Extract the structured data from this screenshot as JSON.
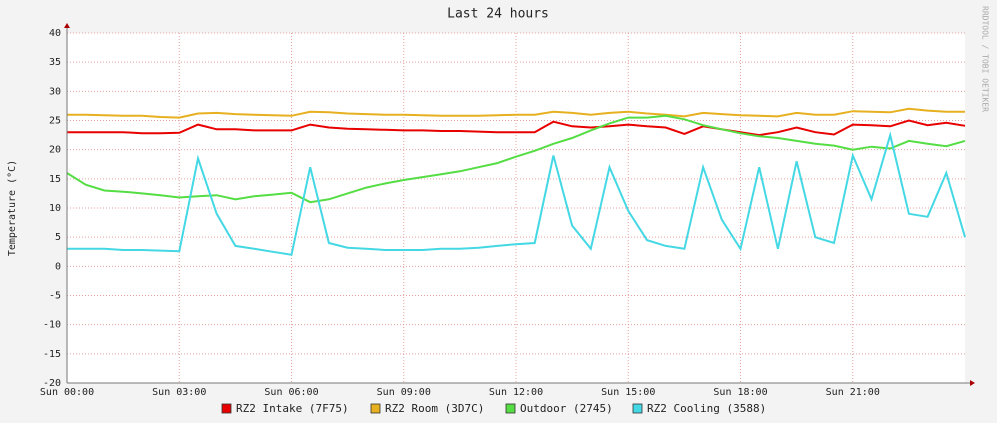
{
  "chart_data": {
    "type": "line",
    "title": "Last 24 hours",
    "y_label": "Temperature (°C)",
    "watermark": "RRDTOOL / TOBI OETIKER",
    "x": [
      0,
      0.5,
      1,
      1.5,
      2,
      2.5,
      3,
      3.5,
      4,
      4.5,
      5,
      5.5,
      6,
      6.5,
      7,
      7.5,
      8,
      8.5,
      9,
      9.5,
      10,
      10.5,
      11,
      11.5,
      12,
      12.5,
      13,
      13.5,
      14,
      14.5,
      15,
      15.5,
      16,
      16.5,
      17,
      17.5,
      18,
      18.5,
      19,
      19.5,
      20,
      20.5,
      21,
      21.5,
      22,
      22.5,
      23,
      23.5,
      24
    ],
    "xlim": [
      0,
      24
    ],
    "xticks": [
      {
        "value": 0,
        "label": "Sun 00:00"
      },
      {
        "value": 3,
        "label": "Sun 03:00"
      },
      {
        "value": 6,
        "label": "Sun 06:00"
      },
      {
        "value": 9,
        "label": "Sun 09:00"
      },
      {
        "value": 12,
        "label": "Sun 12:00"
      },
      {
        "value": 15,
        "label": "Sun 15:00"
      },
      {
        "value": 18,
        "label": "Sun 18:00"
      },
      {
        "value": 21,
        "label": "Sun 21:00"
      }
    ],
    "ylim": [
      -20,
      40
    ],
    "yticks": [
      -20,
      -15,
      -10,
      -5,
      0,
      5,
      10,
      15,
      20,
      25,
      30,
      35,
      40
    ],
    "grid": true,
    "series": [
      {
        "name": "RZ2 Intake (7F75)",
        "color": "#e80000",
        "values": [
          23,
          23,
          23,
          23,
          22.8,
          22.8,
          22.9,
          24.3,
          23.5,
          23.5,
          23.3,
          23.3,
          23.3,
          24.3,
          23.8,
          23.6,
          23.5,
          23.4,
          23.3,
          23.3,
          23.2,
          23.2,
          23.1,
          23,
          23,
          23,
          24.8,
          24,
          23.8,
          24,
          24.3,
          24,
          23.8,
          22.7,
          24,
          23.5,
          23,
          22.5,
          23,
          23.8,
          23,
          22.6,
          24.3,
          24.2,
          24,
          25,
          24.2,
          24.6,
          24.1
        ]
      },
      {
        "name": "RZ2 Room (3D7C)",
        "color": "#e6b020",
        "values": [
          26,
          26,
          25.9,
          25.8,
          25.8,
          25.6,
          25.5,
          26.2,
          26.3,
          26.1,
          26,
          25.9,
          25.8,
          26.5,
          26.4,
          26.2,
          26.1,
          26,
          26,
          25.9,
          25.8,
          25.8,
          25.8,
          25.9,
          26,
          26,
          26.5,
          26.3,
          26,
          26.3,
          26.5,
          26.2,
          26,
          25.7,
          26.3,
          26.1,
          25.9,
          25.8,
          25.7,
          26.3,
          26,
          26,
          26.6,
          26.5,
          26.4,
          27,
          26.7,
          26.5,
          26.5
        ]
      },
      {
        "name": "Outdoor (2745)",
        "color": "#55dd44",
        "values": [
          16,
          14,
          13,
          12.8,
          12.5,
          12.2,
          11.8,
          12,
          12.2,
          11.5,
          12,
          12.3,
          12.6,
          11,
          11.5,
          12.5,
          13.5,
          14.2,
          14.8,
          15.3,
          15.8,
          16.3,
          17,
          17.7,
          18.8,
          19.8,
          21,
          22,
          23.3,
          24.5,
          25.5,
          25.5,
          25.8,
          25.2,
          24.2,
          23.5,
          22.8,
          22.3,
          22,
          21.5,
          21,
          20.7,
          20,
          20.5,
          20.2,
          21.5,
          21,
          20.6,
          21.5
        ]
      },
      {
        "name": "RZ2 Cooling (3588)",
        "color": "#44d8e4",
        "values": [
          3,
          3,
          3,
          2.8,
          2.8,
          2.7,
          2.6,
          18.5,
          9,
          3.5,
          3,
          2.5,
          2,
          17,
          4,
          3.2,
          3,
          2.8,
          2.8,
          2.8,
          3,
          3,
          3.2,
          3.5,
          3.8,
          4,
          19,
          7,
          3,
          17,
          9.5,
          4.5,
          3.5,
          3,
          17,
          8,
          3,
          17,
          3,
          18,
          5,
          4,
          19,
          11.5,
          22.5,
          9,
          8.5,
          16,
          5
        ]
      }
    ]
  }
}
